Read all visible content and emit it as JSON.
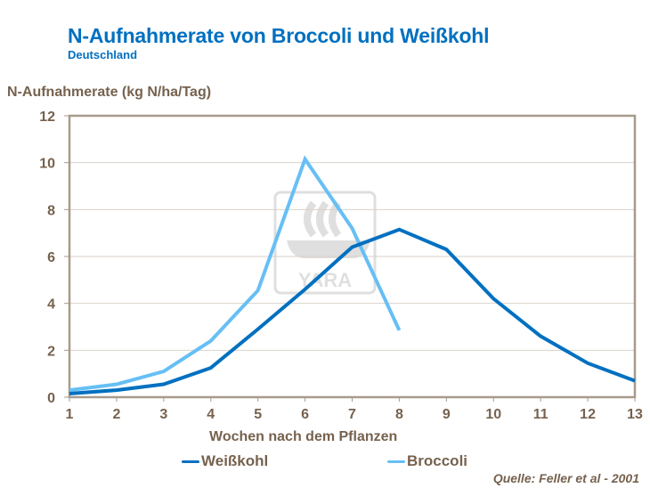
{
  "header": {
    "title": "N-Aufnahmerate von Broccoli und Weißkohl",
    "subtitle": "Deutschland"
  },
  "source": "Quelle: Feller et al - 2001",
  "watermark": {
    "icon": "yara-logo-icon",
    "text": "YARA"
  },
  "colors": {
    "title": "#0070C0",
    "text": "#76624E",
    "axis": "#A89A8C",
    "grid": "#D9D2CA",
    "weisskohl": "#0070C0",
    "broccoli": "#66BFF5"
  },
  "legend": [
    {
      "label": "Weißkohl",
      "color": "#0070C0"
    },
    {
      "label": "Broccoli",
      "color": "#66BFF5"
    }
  ],
  "chart_data": {
    "type": "line",
    "title": "N-Aufnahmerate von Broccoli und Weißkohl",
    "subtitle": "Deutschland",
    "xlabel": "Wochen nach dem Pflanzen",
    "ylabel": "N-Aufnahmerate (kg N/ha/Tag)",
    "x": [
      1,
      2,
      3,
      4,
      5,
      6,
      7,
      8,
      9,
      10,
      11,
      12,
      13
    ],
    "xlim": [
      1,
      13
    ],
    "ylim": [
      0,
      12
    ],
    "yticks": [
      0,
      2,
      4,
      6,
      8,
      10,
      12
    ],
    "grid": true,
    "legend_position": "bottom",
    "series": [
      {
        "name": "Weißkohl",
        "color": "#0070C0",
        "values": [
          0.15,
          0.3,
          0.55,
          1.25,
          2.9,
          4.6,
          6.4,
          7.15,
          6.3,
          4.2,
          2.6,
          1.45,
          0.7
        ]
      },
      {
        "name": "Broccoli",
        "color": "#66BFF5",
        "values": [
          0.3,
          0.55,
          1.1,
          2.4,
          4.55,
          10.15,
          7.2,
          2.85,
          null,
          null,
          null,
          null,
          null
        ]
      }
    ],
    "annotations": [
      "Quelle: Feller et al - 2001"
    ]
  }
}
